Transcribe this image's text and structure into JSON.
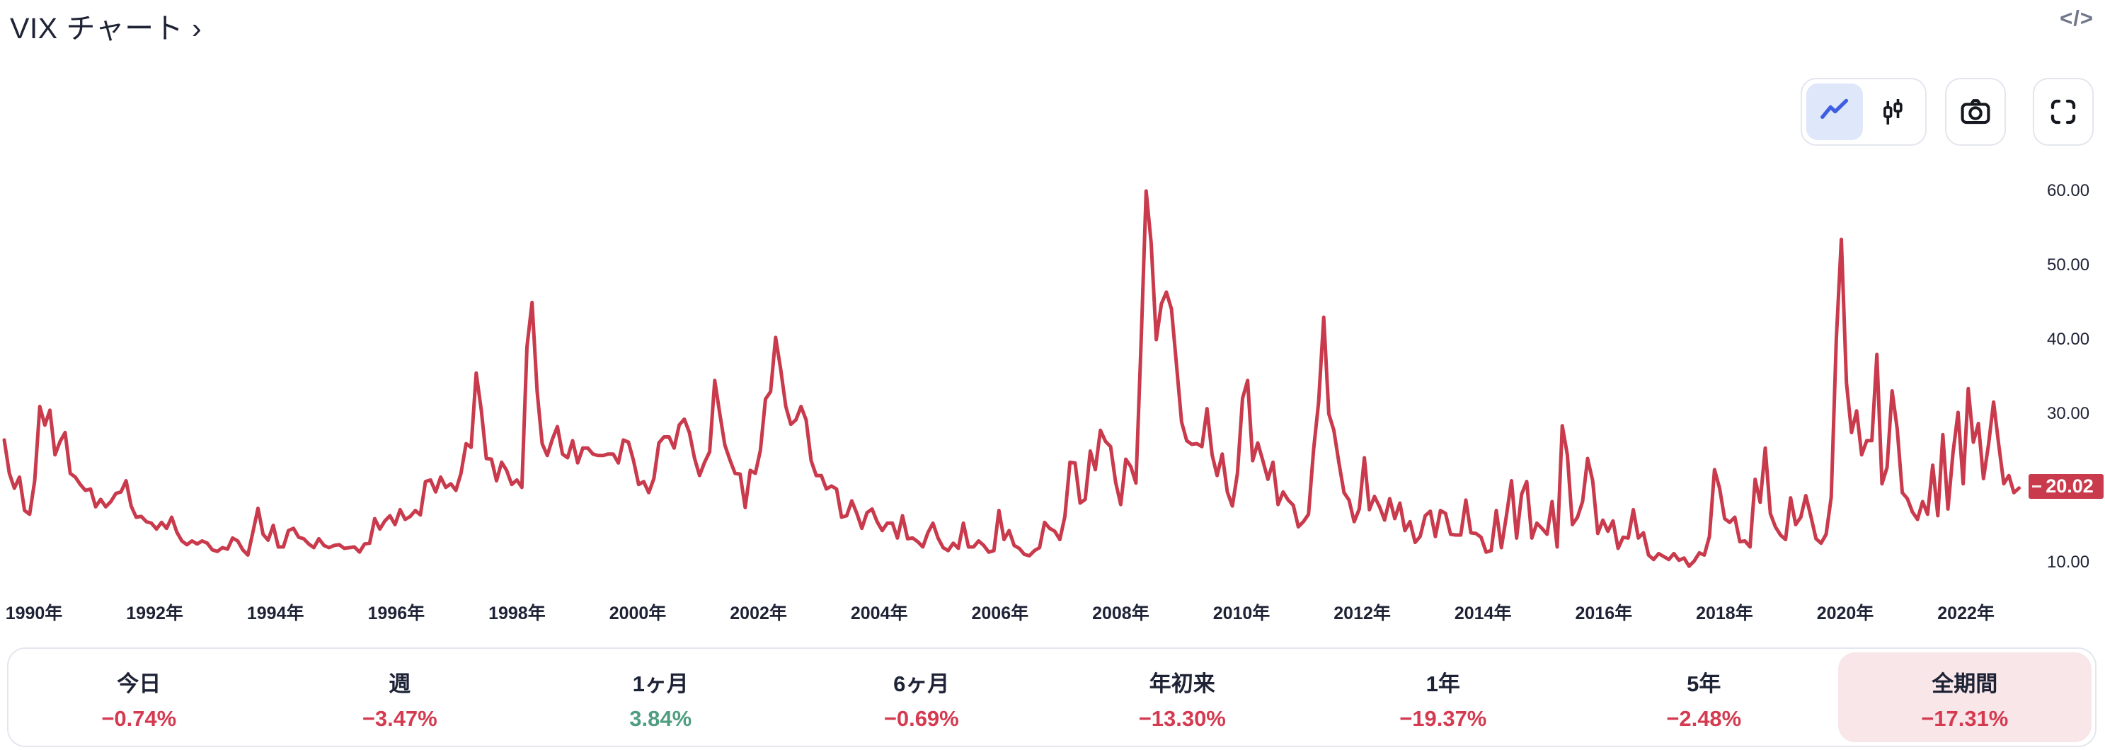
{
  "header": {
    "title": "VIX チャート ›",
    "code_icon_glyph": "</>"
  },
  "colors": {
    "navy": "#1d2235",
    "red": "#d43a50",
    "green": "#4f9e81",
    "line_red": "#c93a4c",
    "blue": "#3e5fe2",
    "blue_bg": "#dfe7fb",
    "pink_bg": "#f8e6e8",
    "border": "#e3e6ee",
    "gray": "#70768a"
  },
  "toolbar": {
    "chart_type_selected": "line",
    "icons": [
      "line-chart-icon",
      "candlestick-icon",
      "camera-icon",
      "fullscreen-icon"
    ]
  },
  "price_badge": {
    "value": "20.02"
  },
  "chart_data": {
    "type": "line",
    "title": "VIX チャート",
    "legend": "off",
    "grid": "off",
    "line_color": "#c93a4c",
    "x_axis_unit": "年",
    "x_tick_labels": [
      "1990年",
      "1992年",
      "1994年",
      "1996年",
      "1998年",
      "2000年",
      "2002年",
      "2004年",
      "2006年",
      "2008年",
      "2010年",
      "2012年",
      "2014年",
      "2016年",
      "2018年",
      "2020年",
      "2022年"
    ],
    "y_ticks": [
      60,
      50,
      40,
      30,
      10
    ],
    "y_tick_labels": [
      "60.00",
      "50.00",
      "40.00",
      "30.00",
      "10.00"
    ],
    "ylim": [
      7,
      63
    ],
    "x_range_years": [
      1990,
      2023.2
    ],
    "last_value": 20.02,
    "series": [
      {
        "name": "VIX",
        "start_year": 1990,
        "points_per_year": 12,
        "values": [
          26.5,
          22.0,
          20.0,
          21.5,
          17.0,
          16.5,
          21.0,
          31.0,
          28.5,
          30.5,
          24.5,
          26.3,
          27.5,
          22.0,
          21.5,
          20.5,
          19.7,
          19.9,
          17.5,
          18.5,
          17.5,
          18.2,
          19.3,
          19.5,
          21.0,
          17.6,
          16.1,
          16.2,
          15.5,
          15.3,
          14.5,
          15.4,
          14.6,
          16.1,
          14.1,
          12.9,
          12.4,
          12.9,
          12.5,
          12.9,
          12.6,
          11.7,
          11.5,
          12.0,
          11.8,
          13.3,
          12.9,
          11.7,
          11.0,
          14.1,
          17.3,
          13.8,
          13.0,
          15.0,
          12.1,
          12.1,
          14.3,
          14.6,
          13.4,
          13.2,
          12.5,
          12.0,
          13.2,
          12.3,
          12.0,
          12.3,
          12.4,
          11.9,
          12.0,
          12.1,
          11.4,
          12.5,
          12.6,
          15.9,
          14.5,
          15.6,
          16.3,
          15.1,
          17.1,
          15.8,
          16.2,
          17.0,
          16.4,
          20.9,
          21.1,
          19.5,
          21.5,
          20.1,
          20.6,
          19.7,
          22.0,
          26.0,
          25.5,
          35.5,
          30.5,
          24.0,
          23.9,
          21.0,
          23.5,
          22.4,
          20.5,
          21.1,
          20.1,
          39.0,
          45.0,
          33.0,
          26.0,
          24.4,
          26.6,
          28.3,
          24.6,
          24.1,
          26.4,
          23.4,
          25.4,
          25.4,
          24.6,
          24.4,
          24.4,
          24.6,
          24.6,
          23.4,
          26.5,
          26.2,
          23.7,
          20.5,
          20.9,
          19.4,
          21.3,
          26.1,
          26.9,
          26.9,
          25.4,
          28.5,
          29.3,
          27.5,
          24.1,
          21.7,
          23.5,
          24.9,
          34.5,
          30.0,
          25.8,
          23.8,
          22.0,
          21.9,
          17.4,
          22.4,
          22.0,
          25.1,
          32.0,
          33.0,
          40.3,
          36.0,
          31.0,
          28.6,
          29.2,
          31.0,
          29.2,
          23.7,
          21.7,
          21.7,
          19.9,
          20.3,
          19.9,
          16.1,
          16.3,
          18.3,
          16.6,
          14.6,
          16.7,
          17.2,
          15.5,
          14.3,
          15.3,
          15.3,
          13.3,
          16.3,
          13.2,
          13.3,
          12.8,
          12.1,
          14.0,
          15.3,
          13.3,
          12.0,
          11.6,
          12.6,
          11.9,
          15.3,
          12.1,
          12.1,
          12.9,
          12.3,
          11.4,
          11.6,
          17.0,
          13.1,
          14.3,
          12.3,
          11.9,
          11.1,
          10.9,
          11.6,
          12.0,
          15.4,
          14.6,
          14.2,
          13.1,
          16.2,
          23.5,
          23.4,
          18.0,
          18.5,
          25.0,
          22.5,
          27.8,
          26.3,
          25.6,
          20.8,
          17.8,
          23.9,
          22.9,
          20.7,
          39.4,
          60.0,
          53.0,
          40.0,
          44.8,
          46.4,
          44.1,
          36.5,
          28.9,
          26.4,
          25.9,
          26.0,
          25.6,
          30.7,
          24.5,
          21.7,
          24.6,
          19.5,
          17.6,
          22.0,
          32.1,
          34.5,
          23.7,
          26.1,
          23.7,
          21.2,
          23.5,
          17.8,
          19.5,
          18.4,
          17.7,
          14.8,
          15.5,
          16.5,
          25.2,
          31.6,
          43.0,
          30.0,
          27.8,
          23.4,
          19.4,
          18.4,
          15.5,
          17.2,
          24.1,
          17.1,
          18.9,
          17.5,
          15.7,
          18.6,
          15.9,
          18.0,
          14.3,
          15.5,
          12.7,
          13.5,
          16.3,
          16.9,
          13.5,
          17.0,
          16.6,
          13.8,
          13.7,
          13.7,
          18.4,
          14.0,
          13.9,
          13.4,
          11.4,
          11.6,
          17.0,
          12.0,
          16.3,
          21.0,
          13.3,
          19.2,
          20.9,
          13.3,
          15.3,
          14.6,
          13.8,
          18.2,
          12.1,
          28.4,
          24.5,
          15.1,
          16.1,
          18.2,
          24.0,
          21.0,
          13.9,
          15.7,
          14.2,
          15.6,
          11.9,
          13.4,
          13.3,
          17.1,
          13.3,
          14.0,
          11.0,
          10.4,
          11.2,
          10.8,
          10.4,
          11.2,
          10.3,
          10.6,
          9.5,
          10.2,
          11.3,
          11.0,
          13.5,
          22.5,
          20.0,
          15.9,
          15.4,
          16.1,
          12.8,
          12.9,
          12.1,
          21.2,
          18.1,
          25.4,
          16.6,
          14.8,
          13.7,
          13.1,
          18.7,
          15.1,
          16.1,
          19.0,
          16.2,
          13.2,
          12.6,
          13.8,
          18.8,
          40.1,
          53.5,
          34.2,
          27.5,
          30.4,
          24.5,
          26.4,
          26.4,
          38.0,
          20.6,
          22.8,
          33.1,
          28.0,
          19.4,
          18.6,
          16.8,
          15.8,
          18.2,
          16.5,
          23.1,
          16.3,
          27.2,
          17.2,
          24.8,
          30.2,
          20.6,
          33.4,
          26.2,
          28.7,
          21.3,
          25.9,
          31.6,
          25.9,
          20.6,
          21.7,
          19.4,
          20.02
        ]
      }
    ]
  },
  "stats": {
    "items": [
      {
        "label": "今日",
        "value": "−0.74%",
        "color": "red",
        "selected": false
      },
      {
        "label": "週",
        "value": "−3.47%",
        "color": "red",
        "selected": false
      },
      {
        "label": "1ヶ月",
        "value": "3.84%",
        "color": "green",
        "selected": false
      },
      {
        "label": "6ヶ月",
        "value": "−0.69%",
        "color": "red",
        "selected": false
      },
      {
        "label": "年初来",
        "value": "−13.30%",
        "color": "red",
        "selected": false
      },
      {
        "label": "1年",
        "value": "−19.37%",
        "color": "red",
        "selected": false
      },
      {
        "label": "5年",
        "value": "−2.48%",
        "color": "red",
        "selected": false
      },
      {
        "label": "全期間",
        "value": "−17.31%",
        "color": "red",
        "selected": true
      }
    ]
  }
}
